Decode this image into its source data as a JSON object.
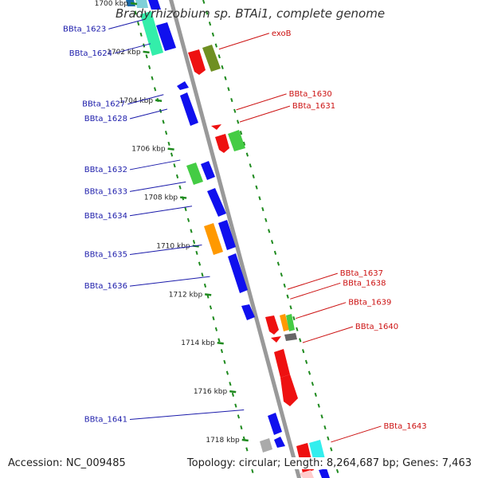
{
  "title": "Bradyrhizobium sp. BTAi1, complete genome",
  "footer": {
    "accession": "Accession: NC_009485",
    "summary": "Topology: circular; Length: 8,264,687 bp; Genes: 7,463"
  },
  "colors": {
    "backbone": "#999999",
    "ticks": "#1e8a1e",
    "left_labels": "#1a1aaa",
    "right_labels": "#cc1111"
  },
  "kbp_marks": [
    {
      "kbp": 1700,
      "label": "1700 kbp"
    },
    {
      "kbp": 1702,
      "label": "1702 kbp"
    },
    {
      "kbp": 1704,
      "label": "1704 kbp"
    },
    {
      "kbp": 1706,
      "label": "1706 kbp"
    },
    {
      "kbp": 1708,
      "label": "1708 kbp"
    },
    {
      "kbp": 1710,
      "label": "1710 kbp"
    },
    {
      "kbp": 1712,
      "label": "1712 kbp"
    },
    {
      "kbp": 1714,
      "label": "1714 kbp"
    },
    {
      "kbp": 1716,
      "label": "1716 kbp"
    },
    {
      "kbp": 1718,
      "label": "1718 kbp"
    }
  ],
  "left_genes": [
    {
      "name": "BBta_1623",
      "kbp": 1700.8
    },
    {
      "name": "BBta_1624",
      "kbp": 1701.8
    },
    {
      "name": "BBta_1627",
      "kbp": 1703.9
    },
    {
      "name": "BBta_1628",
      "kbp": 1704.5
    },
    {
      "name": "BBta_1632",
      "kbp": 1706.6
    },
    {
      "name": "BBta_1633",
      "kbp": 1707.5
    },
    {
      "name": "BBta_1634",
      "kbp": 1708.5
    },
    {
      "name": "BBta_1635",
      "kbp": 1710.1
    },
    {
      "name": "BBta_1636",
      "kbp": 1711.4
    },
    {
      "name": "BBta_1641",
      "kbp": 1716.9
    }
  ],
  "right_genes": [
    {
      "name": "exoB",
      "kbp": 1701.7
    },
    {
      "name": "BBta_1630",
      "kbp": 1704.2
    },
    {
      "name": "BBta_1631",
      "kbp": 1704.7
    },
    {
      "name": "BBta_1637",
      "kbp": 1711.6
    },
    {
      "name": "BBta_1638",
      "kbp": 1712.0
    },
    {
      "name": "BBta_1639",
      "kbp": 1712.8
    },
    {
      "name": "BBta_1640",
      "kbp": 1713.8
    },
    {
      "name": "BBta_1643",
      "kbp": 1717.9
    }
  ]
}
